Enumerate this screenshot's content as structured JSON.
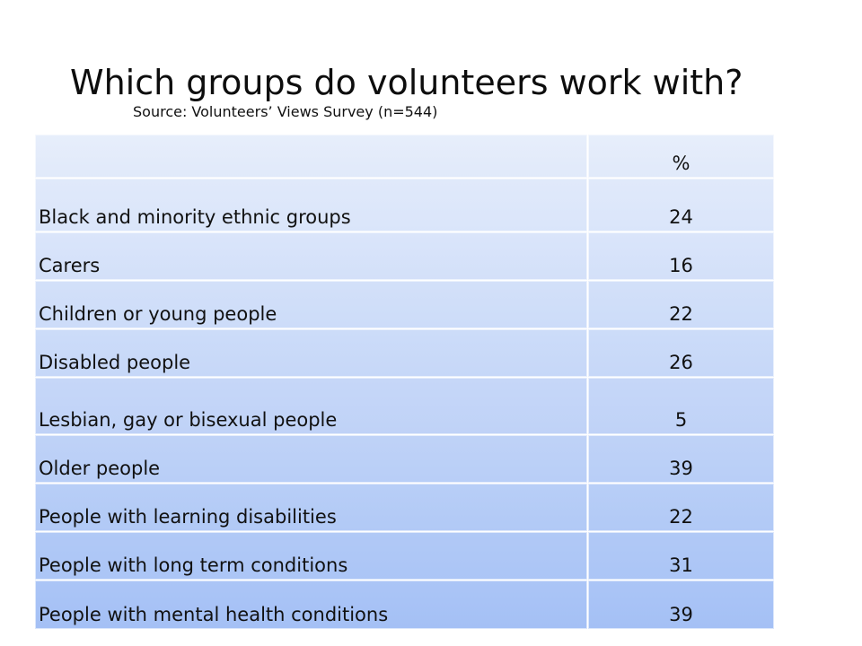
{
  "slide": {
    "title": "Which groups do volunteers work with?",
    "subtitle": "Source: Volunteers’ Views Survey (n=544)"
  },
  "table": {
    "header": [
      "",
      "%"
    ],
    "rows": [
      {
        "label": "Black and minority ethnic groups",
        "value": "24"
      },
      {
        "label": "Carers",
        "value": "16"
      },
      {
        "label": "Children or young people",
        "value": "22"
      },
      {
        "label": "Disabled people",
        "value": "26"
      },
      {
        "label": "Lesbian, gay or bisexual people",
        "value": "5"
      },
      {
        "label": "Older people",
        "value": "39"
      },
      {
        "label": "People with learning disabilities",
        "value": "22"
      },
      {
        "label": "People with long term conditions",
        "value": "31"
      },
      {
        "label": "People with mental health conditions",
        "value": "39"
      }
    ]
  },
  "colors": {
    "cell_top": "#e7eefb",
    "cell_bottom": "#a4c0f5",
    "border": "#ffffff"
  }
}
